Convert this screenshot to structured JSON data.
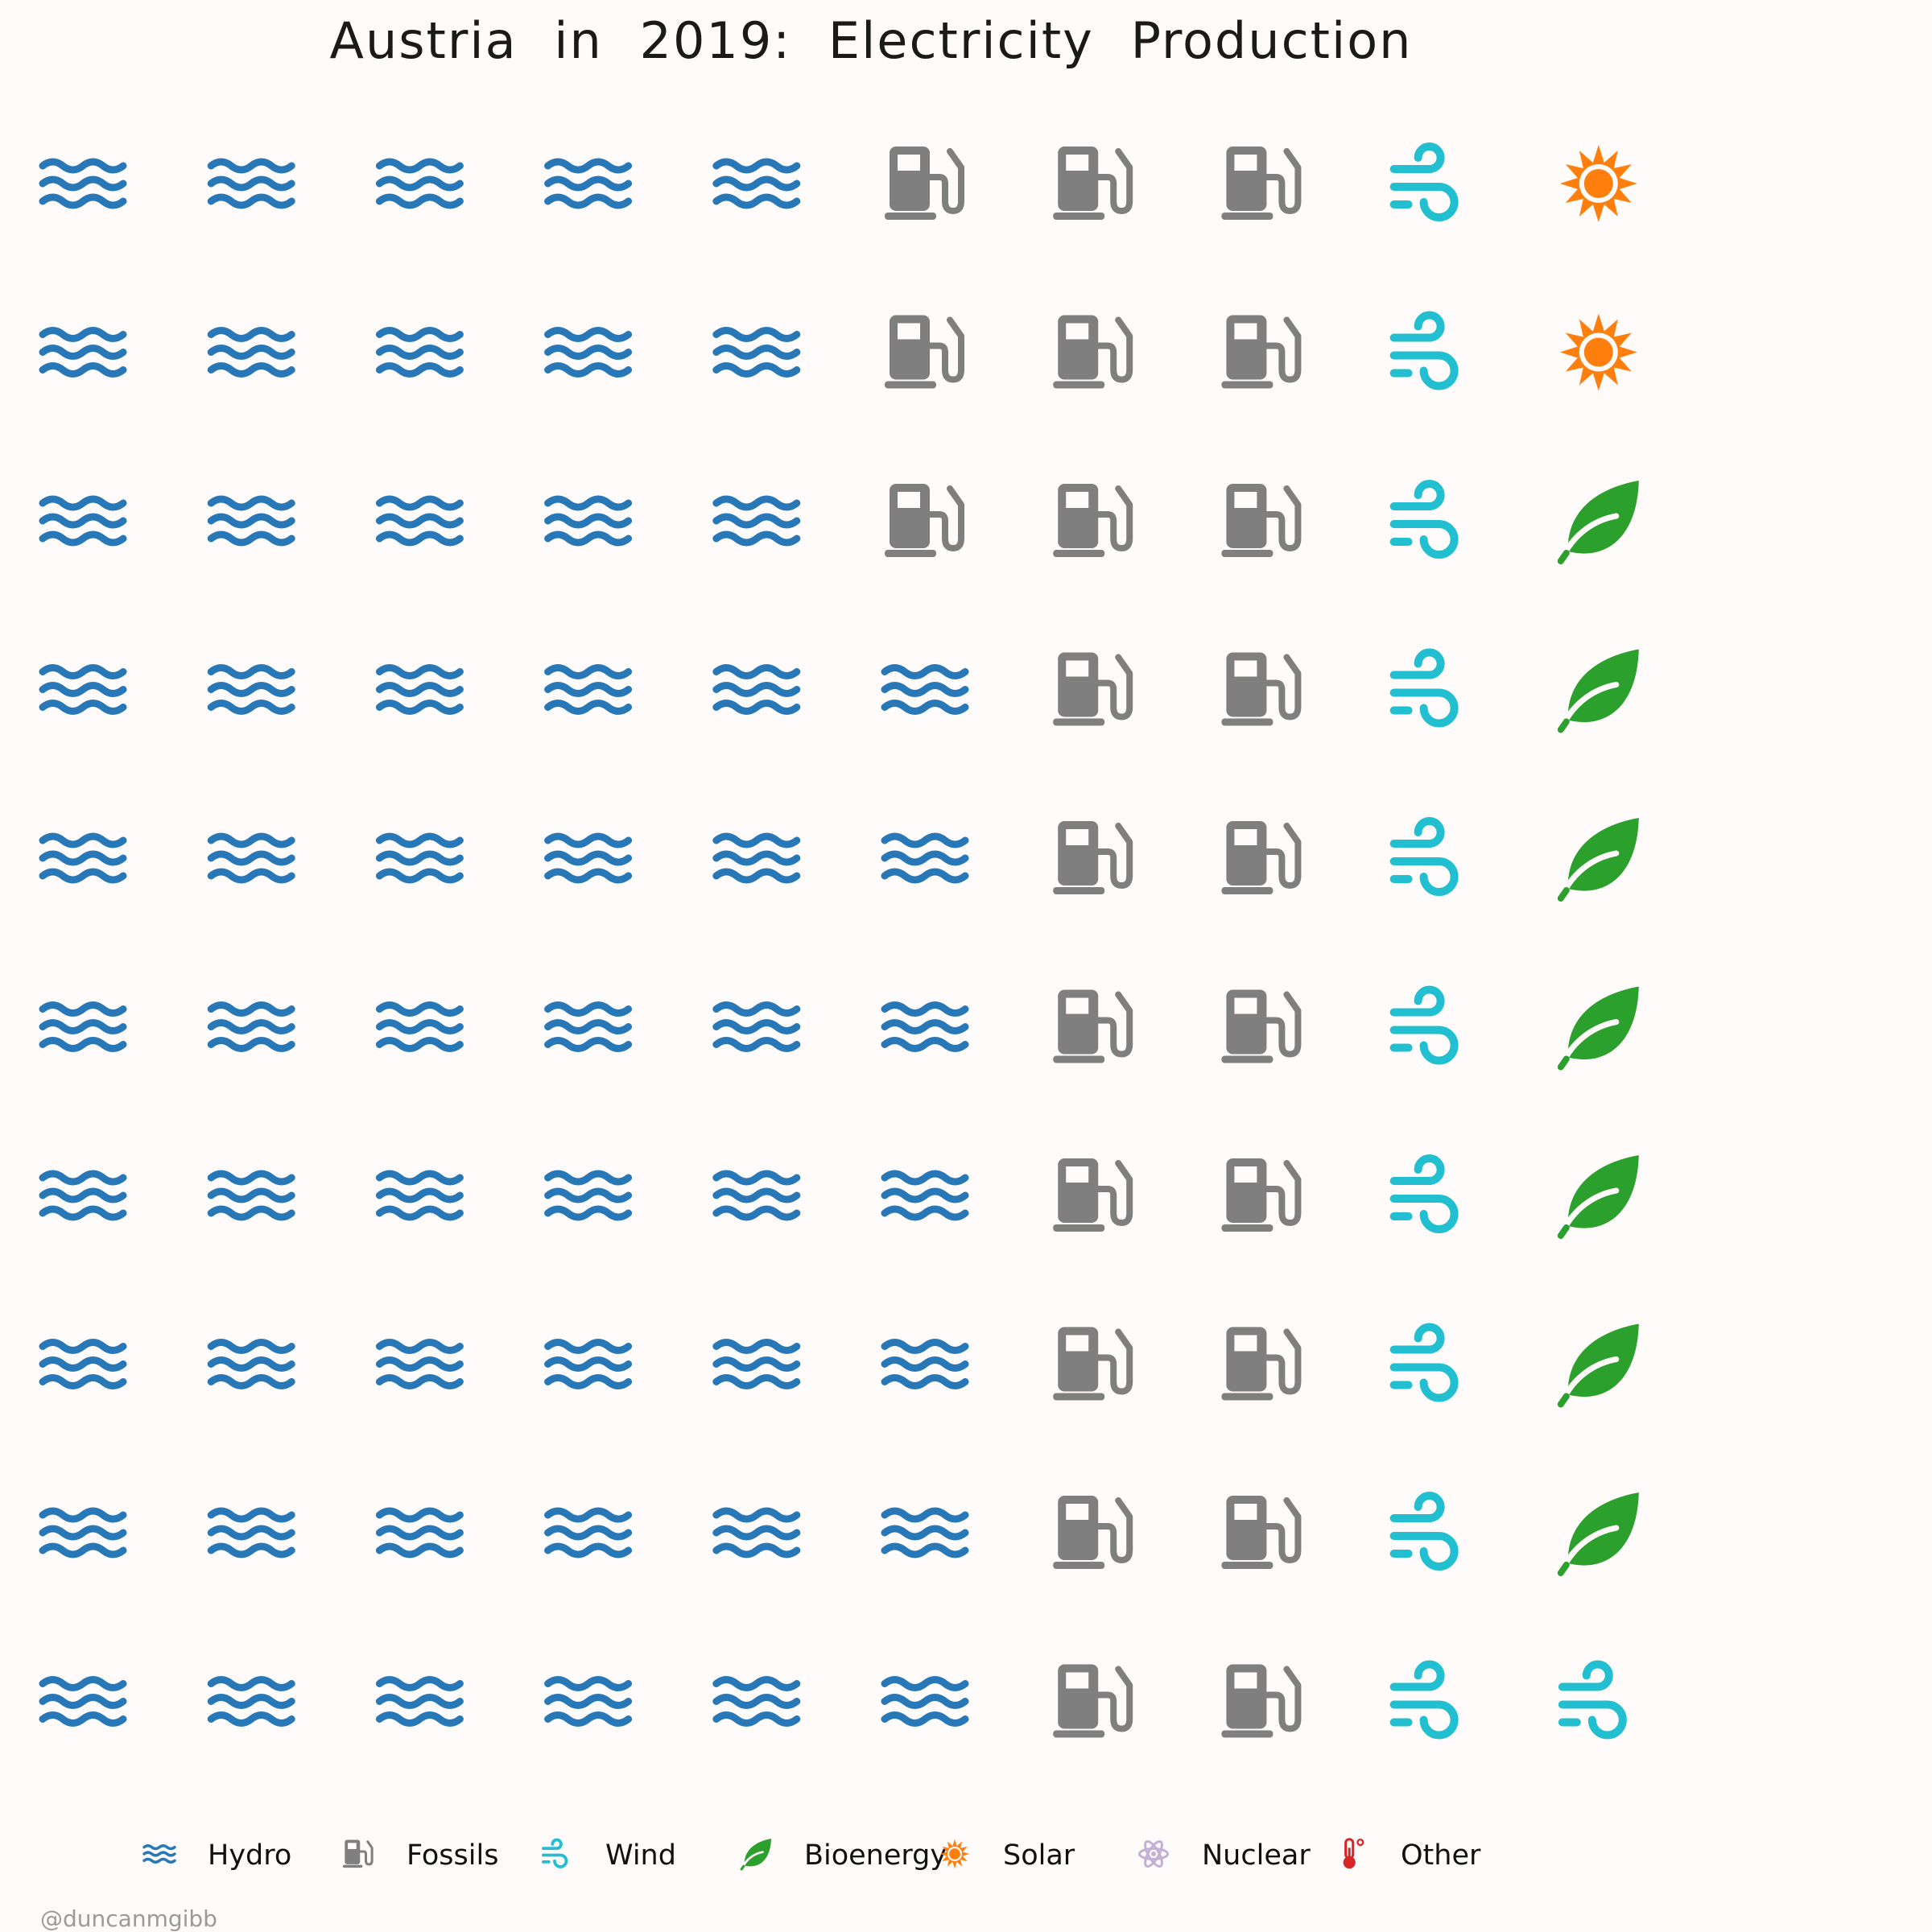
{
  "chart_data": {
    "type": "waffle",
    "title": "Austria in 2019: Electricity Production",
    "grid": {
      "rows": 10,
      "columns": 10,
      "unit": "1 icon = 1% of production"
    },
    "categories": [
      {
        "name": "Hydro",
        "value": 57,
        "color": "#2878b8",
        "icon": "water-waves-icon"
      },
      {
        "name": "Fossils",
        "value": 23,
        "color": "#7f7f7f",
        "icon": "gas-pump-icon"
      },
      {
        "name": "Wind",
        "value": 11,
        "color": "#22bfd1",
        "icon": "wind-icon"
      },
      {
        "name": "Bioenergy",
        "value": 7,
        "color": "#2ca02c",
        "icon": "leaf-icon"
      },
      {
        "name": "Solar",
        "value": 2,
        "color": "#ff7f0e",
        "icon": "sun-icon"
      },
      {
        "name": "Nuclear",
        "value": 0,
        "color": "#c5b0d5",
        "icon": "atom-icon"
      },
      {
        "name": "Other",
        "value": 0,
        "color": "#d62728",
        "icon": "thermometer-icon"
      }
    ],
    "legend": {
      "position": "bottom"
    }
  },
  "credit": "@duncanmgibb"
}
